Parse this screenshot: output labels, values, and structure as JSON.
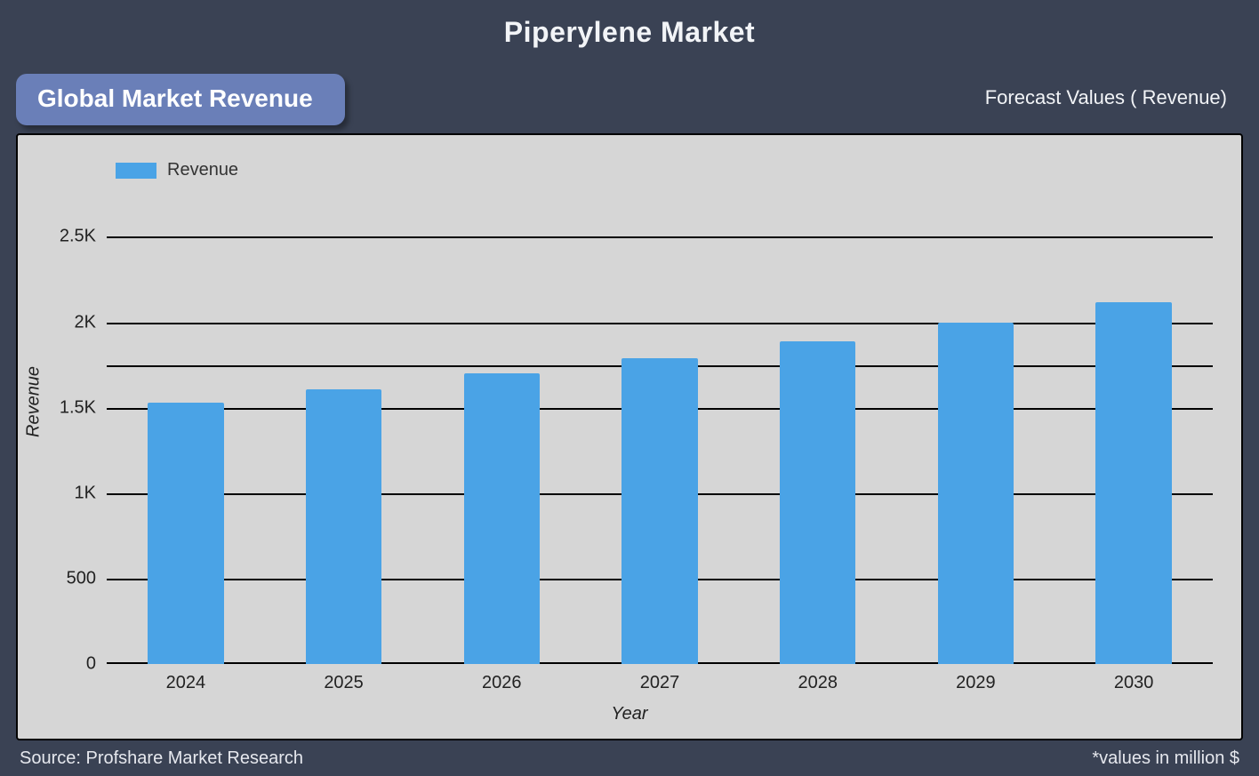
{
  "page": {
    "title": "Piperylene Market",
    "badge_label": "Global Market Revenue",
    "forecast_label": "Forecast Values ( Revenue)",
    "source_label": "Source: Profshare Market Research",
    "footnote": "*values in million $",
    "background_color": "#3a4254",
    "title_color": "#f2f4f7",
    "title_fontsize": 32,
    "badge_bg": "#6a7fb8",
    "badge_fontsize": 28
  },
  "chart": {
    "type": "bar",
    "legend_label": "Revenue",
    "legend_swatch_color": "#4aa3e6",
    "plot_bg": "#d6d6d6",
    "plot_border_color": "#000000",
    "x_label": "Year",
    "y_label": "Revenue",
    "axis_font_italic": true,
    "axis_fontsize": 20,
    "tick_fontsize": 20,
    "tick_color": "#222222",
    "gridline_color": "#000000",
    "categories": [
      "2024",
      "2025",
      "2026",
      "2027",
      "2028",
      "2029",
      "2030"
    ],
    "values": [
      1530,
      1610,
      1700,
      1790,
      1890,
      2000,
      2120
    ],
    "bar_color": "#4aa3e6",
    "bar_width_ratio": 0.48,
    "ylim": [
      0,
      2700
    ],
    "y_ticks": [
      {
        "value": 0,
        "label": "0"
      },
      {
        "value": 500,
        "label": "500"
      },
      {
        "value": 1000,
        "label": "1K"
      },
      {
        "value": 1500,
        "label": "1.5K"
      },
      {
        "value": 2000,
        "label": "2K"
      },
      {
        "value": 2500,
        "label": "2.5K"
      }
    ],
    "gridlines_at": [
      500,
      1000,
      1500,
      1750,
      2000,
      2500
    ]
  }
}
